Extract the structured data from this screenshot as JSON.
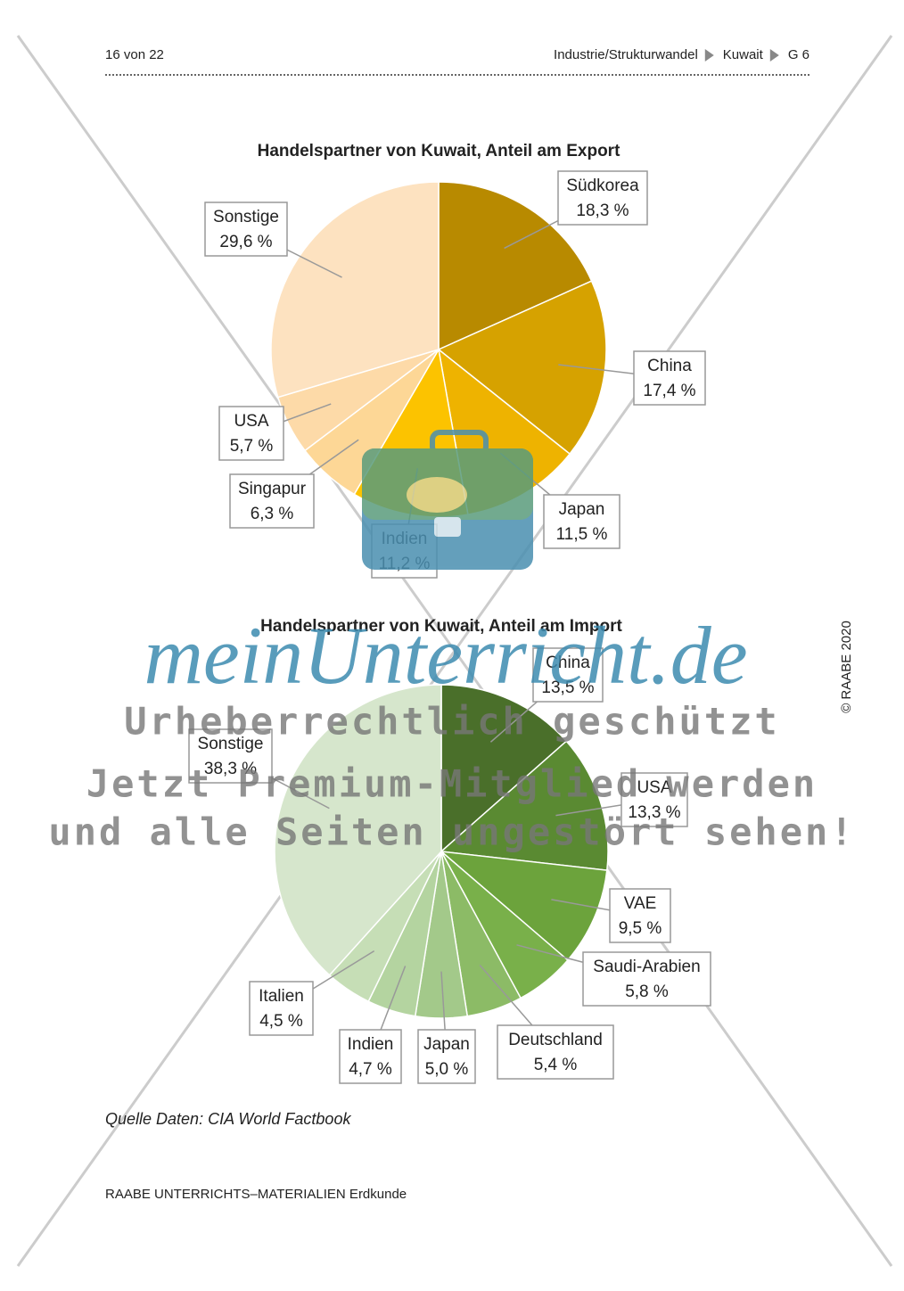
{
  "header": {
    "page": "16 von 22",
    "crumbs": [
      "Industrie/Strukturwandel",
      "Kuwait",
      "G 6"
    ]
  },
  "chart_data": [
    {
      "type": "pie",
      "title": "Handelspartner von Kuwait, Anteil am Export",
      "categories": [
        "Südkorea",
        "China",
        "Japan",
        "Indien",
        "Singapur",
        "USA",
        "Sonstige"
      ],
      "values": [
        18.3,
        17.4,
        11.5,
        11.2,
        6.3,
        5.7,
        29.6
      ],
      "value_labels": [
        "18,3 %",
        "17,4 %",
        "11,5 %",
        "11,2 %",
        "6,3 %",
        "5,7 %",
        "29,6 %"
      ],
      "colors": [
        "#b88a00",
        "#d6a200",
        "#eeb300",
        "#fcc300",
        "#fdd796",
        "#fddaa8",
        "#fde2c0"
      ]
    },
    {
      "type": "pie",
      "title": "Handelspartner von Kuwait, Anteil am Import",
      "categories": [
        "China",
        "USA",
        "VAE",
        "Saudi-Arabien",
        "Deutschland",
        "Japan",
        "Indien",
        "Italien",
        "Sonstige"
      ],
      "values": [
        13.5,
        13.3,
        9.5,
        5.8,
        5.4,
        5.0,
        4.7,
        4.5,
        38.3
      ],
      "value_labels": [
        "13,5 %",
        "13,3 %",
        "9,5 %",
        "5,8 %",
        "5,4 %",
        "5,0 %",
        "4,7 %",
        "4,5 %",
        "38,3 %"
      ],
      "colors": [
        "#4a6f2a",
        "#5a8a32",
        "#6ca33c",
        "#79b04a",
        "#8cbb66",
        "#a3c98a",
        "#b4d4a0",
        "#c6deb6",
        "#d6e6cc"
      ]
    }
  ],
  "source": "Quelle Daten: CIA World Factbook",
  "footer": "RAABE UNTERRICHTS–MATERIALIEN Erdkunde",
  "copyright": "© RAABE 2020",
  "watermark": {
    "brand": "meinUnterricht.de",
    "lines": [
      "Urheberrechtlich geschützt",
      "Jetzt Premium-Mitglied werden",
      "und alle Seiten ungestört sehen!"
    ]
  }
}
